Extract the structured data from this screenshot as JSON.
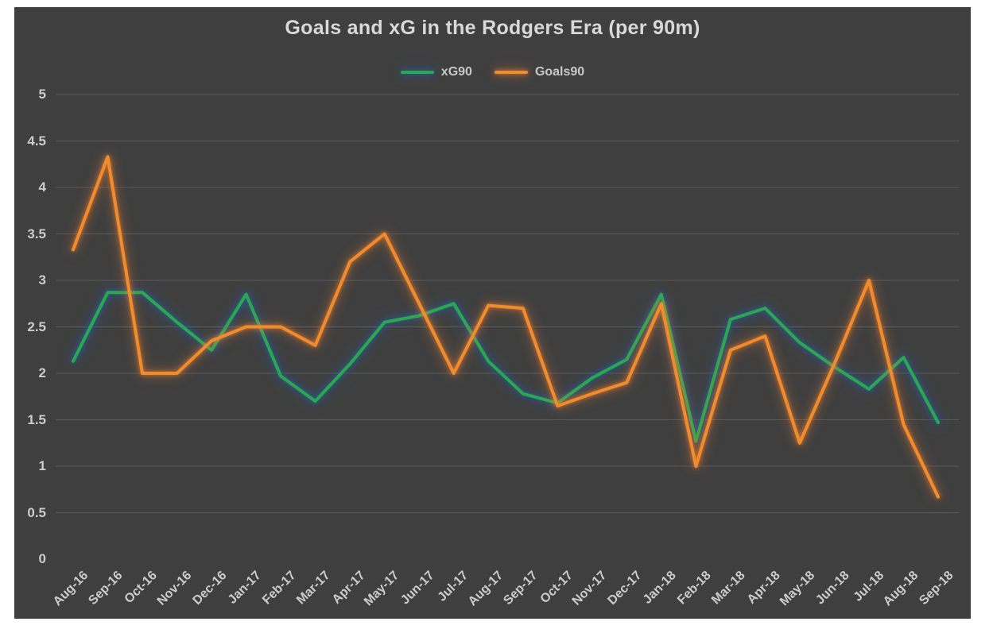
{
  "chart": {
    "title": "Goals and xG in the Rodgers Era (per 90m)",
    "canvas_color": "#3F3F3F",
    "gridline_color": "#5B5B5B",
    "text_color": "#CCCCCC",
    "glow_colors": {
      "xG90": "#285C9E",
      "Goals90": "#EB7D2D"
    }
  },
  "chart_data": {
    "type": "line",
    "title": "Goals and xG in the Rodgers Era (per 90m)",
    "categories": [
      "Aug-16",
      "Sep-16",
      "Oct-16",
      "Nov-16",
      "Dec-16",
      "Jan-17",
      "Feb-17",
      "Mar-17",
      "Apr-17",
      "May-17",
      "Jun-17",
      "Jul-17",
      "Aug-17",
      "Sep-17",
      "Oct-17",
      "Nov-17",
      "Dec-17",
      "Jan-18",
      "Feb-18",
      "Mar-18",
      "Apr-18",
      "May-18",
      "Jun-18",
      "Jul-18",
      "Aug-18",
      "Sep-18"
    ],
    "series": [
      {
        "name": "xG90",
        "color": "#2AA84F",
        "values": [
          2.13,
          2.87,
          2.87,
          2.55,
          2.25,
          2.85,
          1.97,
          1.7,
          2.1,
          2.55,
          2.62,
          2.75,
          2.13,
          1.78,
          1.68,
          1.95,
          2.15,
          2.85,
          1.27,
          2.58,
          2.7,
          2.33,
          2.07,
          1.83,
          2.17,
          1.47
        ]
      },
      {
        "name": "Goals90",
        "color": "#F08B2E",
        "values": [
          3.33,
          4.33,
          2.0,
          2.0,
          2.35,
          2.5,
          2.5,
          2.3,
          3.2,
          3.5,
          2.75,
          2.0,
          2.73,
          2.7,
          1.65,
          1.78,
          1.9,
          2.75,
          1.0,
          2.25,
          2.4,
          1.25,
          2.1,
          3.0,
          1.45,
          0.67
        ]
      }
    ],
    "ylim": [
      0,
      5
    ],
    "ytick_step": 0.5,
    "ytick_labels": [
      "0",
      "0.5",
      "1",
      "1.5",
      "2",
      "2.5",
      "3",
      "3.5",
      "4",
      "4.5",
      "5"
    ],
    "grid": true,
    "legend_position": "top",
    "xlabel": "",
    "ylabel": ""
  }
}
